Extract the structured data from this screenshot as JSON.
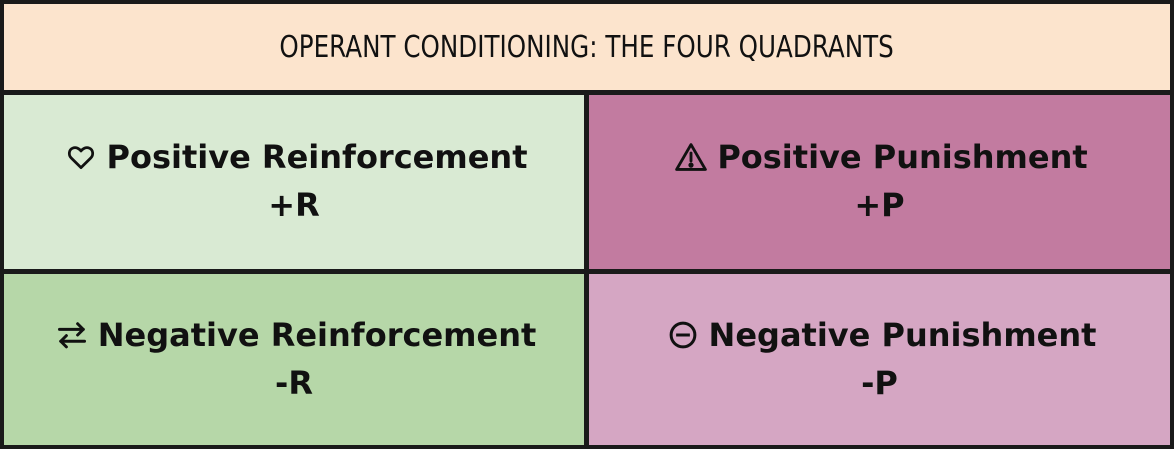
{
  "header": {
    "title": "OPERANT CONDITIONING: THE FOUR QUADRANTS",
    "background": "#fce4cd"
  },
  "quadrants": [
    {
      "title": "Positive Reinforcement",
      "abbr": "+R",
      "icon": "heart-icon",
      "color": "#d9ead3"
    },
    {
      "title": "Positive Punishment",
      "abbr": "+P",
      "icon": "warning-icon",
      "color": "#c27ba0"
    },
    {
      "title": "Negative Reinforcement",
      "abbr": "-R",
      "icon": "swap-arrows-icon",
      "color": "#b6d7a8"
    },
    {
      "title": "Negative Punishment",
      "abbr": "-P",
      "icon": "minus-circle-icon",
      "color": "#d5a6c3"
    }
  ]
}
